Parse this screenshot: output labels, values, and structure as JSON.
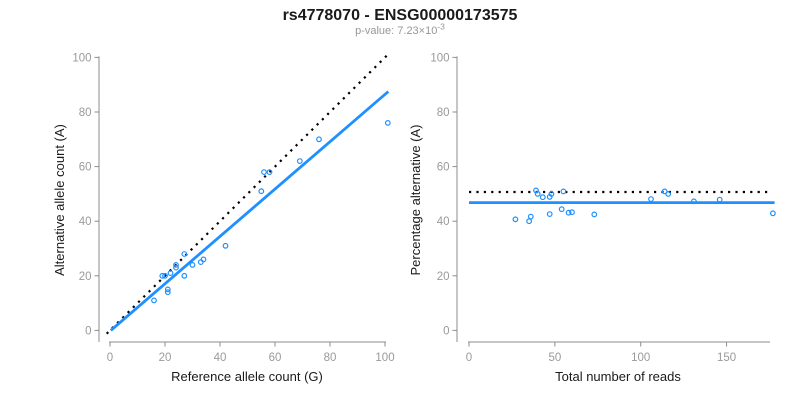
{
  "header": {
    "title": "rs4778070 - ENSG00000173575",
    "subtitle_base": "p-value: 7.23×10",
    "subtitle_exp": "-3"
  },
  "colors": {
    "accent_blue": "#1E90FF",
    "dotted_black": "#000000",
    "axis_gray": "#8c8c8c",
    "tick_label_gray": "#9a9a9a"
  },
  "chart_data": [
    {
      "type": "scatter",
      "panel": "left",
      "xlabel": "Reference allele count (G)",
      "ylabel": "Alternative allele count (A)",
      "xlim": [
        0,
        100
      ],
      "ylim": [
        0,
        100
      ],
      "xticks": [
        0,
        20,
        40,
        60,
        80,
        100
      ],
      "yticks": [
        0,
        20,
        40,
        60,
        80,
        100
      ],
      "grid": false,
      "point_style": "open-circle",
      "points": [
        [
          16,
          11
        ],
        [
          19,
          20
        ],
        [
          20,
          20
        ],
        [
          21,
          15
        ],
        [
          21,
          14
        ],
        [
          22,
          21
        ],
        [
          24,
          24
        ],
        [
          24,
          23
        ],
        [
          27,
          28
        ],
        [
          27,
          20
        ],
        [
          30,
          24
        ],
        [
          33,
          25
        ],
        [
          34,
          26
        ],
        [
          42,
          31
        ],
        [
          55,
          51
        ],
        [
          56,
          58
        ],
        [
          58,
          58
        ],
        [
          69,
          62
        ],
        [
          76,
          70
        ],
        [
          101,
          76
        ]
      ],
      "lines": [
        {
          "name": "identity-line",
          "style": "dotted",
          "color": "#000000",
          "x1": -1.2,
          "y1": -1.2,
          "x2": 101.6,
          "y2": 101.6
        },
        {
          "name": "regression-line",
          "style": "solid",
          "color": "#1E90FF",
          "x1": 0.3,
          "y1": 0,
          "x2": 101.2,
          "y2": 87.5
        }
      ]
    },
    {
      "type": "scatter",
      "panel": "right",
      "xlabel": "Total number of reads",
      "ylabel": "Percentage alternative (A)",
      "xlim": [
        0,
        180
      ],
      "ylim": [
        0,
        100
      ],
      "xticks": [
        0,
        50,
        100,
        150
      ],
      "yticks": [
        0,
        20,
        40,
        60,
        80,
        100
      ],
      "grid": false,
      "point_style": "open-circle",
      "points": [
        [
          27,
          40.7
        ],
        [
          39,
          51.3
        ],
        [
          40,
          50.0
        ],
        [
          36,
          41.7
        ],
        [
          35,
          40.0
        ],
        [
          43,
          48.8
        ],
        [
          48,
          50.0
        ],
        [
          47,
          48.9
        ],
        [
          55,
          50.9
        ],
        [
          47,
          42.6
        ],
        [
          54,
          44.4
        ],
        [
          58,
          43.1
        ],
        [
          60,
          43.3
        ],
        [
          73,
          42.5
        ],
        [
          106,
          48.1
        ],
        [
          114,
          50.9
        ],
        [
          116,
          50.0
        ],
        [
          131,
          47.3
        ],
        [
          146,
          47.9
        ],
        [
          177,
          42.9
        ]
      ],
      "lines": [
        {
          "name": "expected-percentage-line",
          "style": "dotted",
          "color": "#000000",
          "y": 50.7,
          "x1": 0,
          "x2": 174
        },
        {
          "name": "fitted-percentage-line",
          "style": "solid",
          "color": "#1E90FF",
          "y": 46.8,
          "x1": 0,
          "x2": 178
        }
      ]
    }
  ]
}
